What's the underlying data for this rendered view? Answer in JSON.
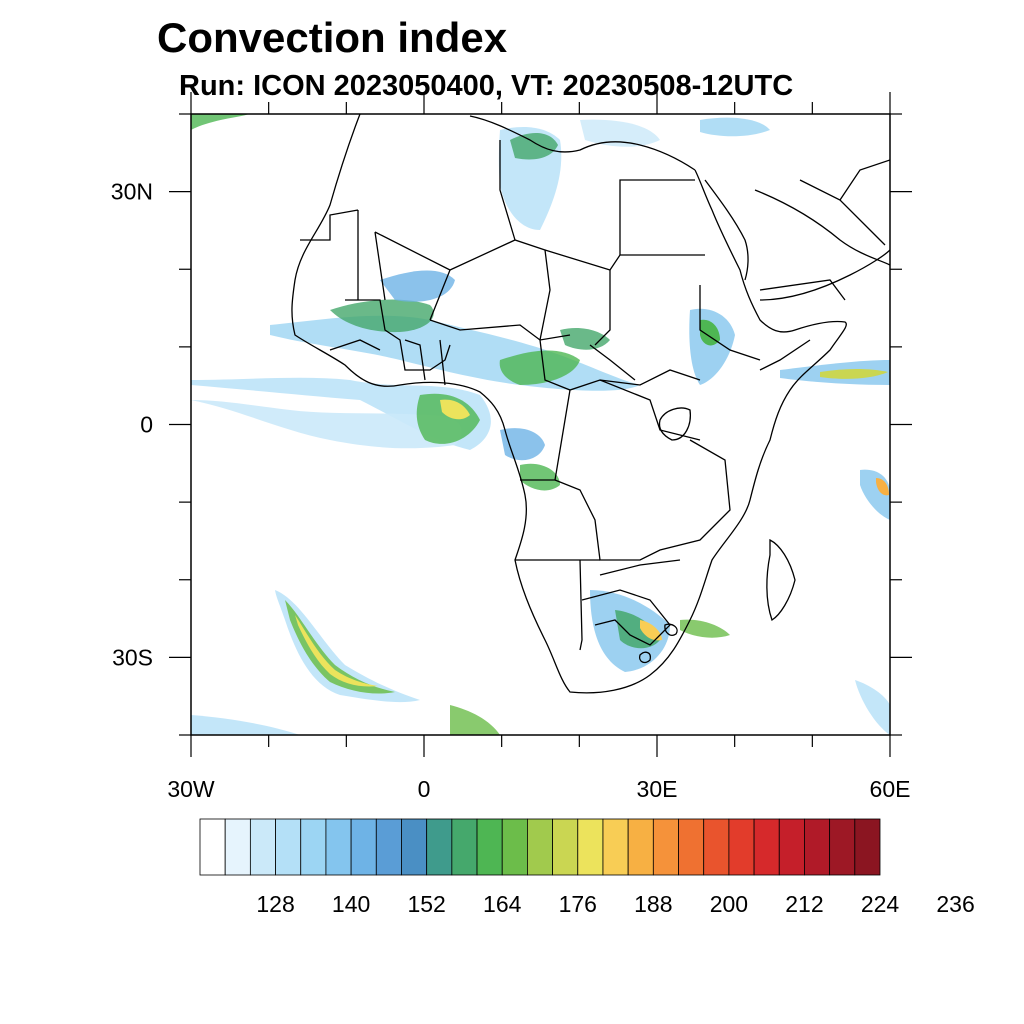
{
  "title": "Convection index",
  "subtitle": "Run: ICON 2023050400,  VT: 20230508-12UTC",
  "map": {
    "lon_range": [
      -30,
      60
    ],
    "lat_range": [
      -40,
      40
    ],
    "lat_labels": [
      {
        "lat": 30,
        "text": "30N"
      },
      {
        "lat": 0,
        "text": "0"
      },
      {
        "lat": -30,
        "text": "30S"
      }
    ],
    "lon_labels": [
      {
        "lon": -30,
        "text": "30W"
      },
      {
        "lon": 0,
        "text": "0"
      },
      {
        "lon": 30,
        "text": "30E"
      },
      {
        "lon": 60,
        "text": "60E"
      }
    ]
  },
  "colorbar": {
    "colors": [
      "#ffffff",
      "#e6f4fd",
      "#cbe9f9",
      "#b4e0f7",
      "#9cd5f3",
      "#84c5ee",
      "#6eb3e6",
      "#5a9dd6",
      "#4a8fc4",
      "#3f9b8c",
      "#45a86c",
      "#4eb653",
      "#6cbd4a",
      "#a1ca4d",
      "#cad652",
      "#ece35c",
      "#f8cd55",
      "#f7b043",
      "#f5923a",
      "#ef7131",
      "#e9542d",
      "#e23c2b",
      "#d6292b",
      "#c51f2a",
      "#b01a28",
      "#9d1825",
      "#8b1521"
    ],
    "tick_labels": [
      "128",
      "140",
      "152",
      "164",
      "176",
      "188",
      "200",
      "212",
      "224",
      "236"
    ]
  }
}
